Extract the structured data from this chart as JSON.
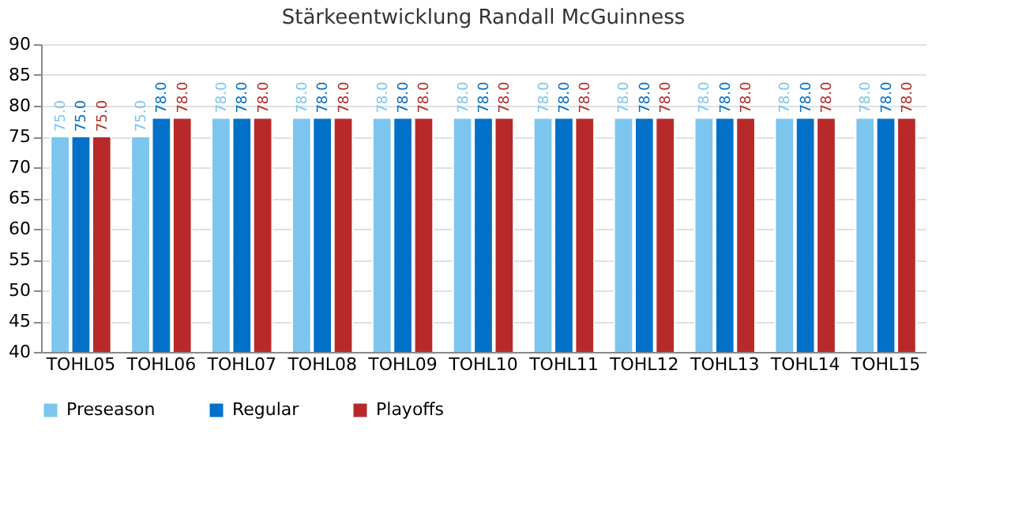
{
  "chart_data": {
    "type": "bar",
    "title": "Stärkeentwicklung Randall McGuinness",
    "categories": [
      "TOHL05",
      "TOHL06",
      "TOHL07",
      "TOHL08",
      "TOHL09",
      "TOHL10",
      "TOHL11",
      "TOHL12",
      "TOHL13",
      "TOHL14",
      "TOHL15"
    ],
    "series": [
      {
        "name": "Preseason",
        "color": "#7cc5ef",
        "values": [
          75,
          75,
          78,
          78,
          78,
          78,
          78,
          78,
          78,
          78,
          78
        ],
        "value_labels": [
          "75.0",
          "75.0",
          "78.0",
          "78.0",
          "78.0",
          "78.0",
          "78.0",
          "78.0",
          "78.0",
          "78.0",
          "78.0"
        ]
      },
      {
        "name": "Regular",
        "color": "#0070c8",
        "values": [
          75,
          78,
          78,
          78,
          78,
          78,
          78,
          78,
          78,
          78,
          78
        ],
        "value_labels": [
          "75.0",
          "78.0",
          "78.0",
          "78.0",
          "78.0",
          "78.0",
          "78.0",
          "78.0",
          "78.0",
          "78.0",
          "78.0"
        ]
      },
      {
        "name": "Playoffs",
        "color": "#b82a2a",
        "values": [
          75,
          78,
          78,
          78,
          78,
          78,
          78,
          78,
          78,
          78,
          78
        ],
        "value_labels": [
          "75.0",
          "78.0",
          "78.0",
          "78.0",
          "78.0",
          "78.0",
          "78.0",
          "78.0",
          "78.0",
          "78.0",
          "78.0"
        ]
      }
    ],
    "ylim": [
      40,
      90
    ],
    "yticks": [
      40,
      45,
      50,
      55,
      60,
      65,
      70,
      75,
      80,
      85,
      90
    ],
    "grid": "y",
    "legend": "bottom"
  }
}
